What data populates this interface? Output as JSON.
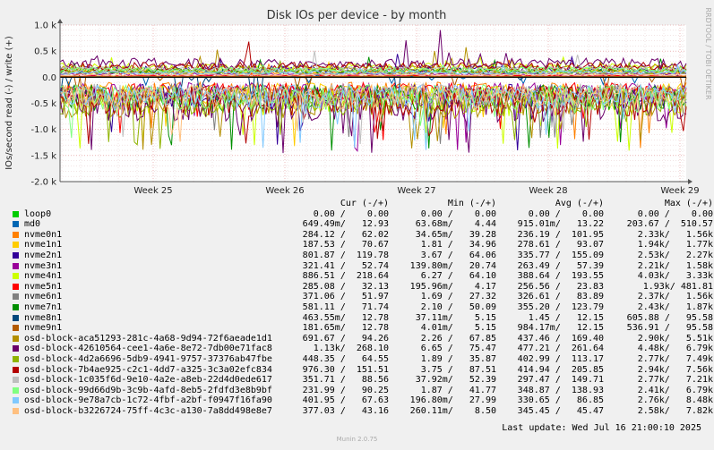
{
  "chart_data": {
    "type": "line",
    "title": "Disk IOs per device - by month",
    "ylabel": "IOs/second read (-) / write (+)",
    "ylim": [
      -2000,
      1000
    ],
    "yticks": [
      {
        "value": 1000,
        "label": "1.0 k"
      },
      {
        "value": 500,
        "label": "0.5 k"
      },
      {
        "value": 0,
        "label": "0.0"
      },
      {
        "value": -500,
        "label": "-0.5 k"
      },
      {
        "value": -1000,
        "label": "-1.0 k"
      },
      {
        "value": -1500,
        "label": "-1.5 k"
      },
      {
        "value": -2000,
        "label": "-2.0 k"
      }
    ],
    "xticks": [
      "Week 25",
      "Week 26",
      "Week 27",
      "Week 28",
      "Week 29"
    ],
    "grid": true,
    "side_label": "RRDTOOL / TOBI OETIKER",
    "legend_headers": [
      "Cur (-/+)",
      "Min (-/+)",
      "Avg (-/+)",
      "Max (-/+)"
    ],
    "series": [
      {
        "name": "loop0",
        "color": "#00cc00",
        "cur": "0.00 /    0.00",
        "min": "0.00 /    0.00",
        "avg": "0.00 /    0.00",
        "max": "0.00 /    0.00"
      },
      {
        "name": "md0",
        "color": "#0066b3",
        "cur": "649.49m/   12.93",
        "min": "63.68m/    4.44",
        "avg": "915.01m/   13.22",
        "max": "203.67 /  510.57"
      },
      {
        "name": "nvme0n1",
        "color": "#ff8000",
        "cur": "284.12 /   62.02",
        "min": "34.65m/   39.28",
        "avg": "236.19 /  101.95",
        "max": "2.33k/   1.56k"
      },
      {
        "name": "nvme1n1",
        "color": "#ffcc00",
        "cur": "187.53 /   70.67",
        "min": "1.81 /   34.96",
        "avg": "278.61 /   93.07",
        "max": "1.94k/   1.77k"
      },
      {
        "name": "nvme2n1",
        "color": "#330099",
        "cur": "801.87 /  119.78",
        "min": "3.67 /   64.06",
        "avg": "335.77 /  155.09",
        "max": "2.53k/   2.27k"
      },
      {
        "name": "nvme3n1",
        "color": "#990099",
        "cur": "321.41 /   52.74",
        "min": "139.80m/   20.74",
        "avg": "263.49 /   57.39",
        "max": "2.21k/   1.58k"
      },
      {
        "name": "nvme4n1",
        "color": "#ccff00",
        "cur": "886.51 /  218.64",
        "min": "6.27 /   64.10",
        "avg": "388.64 /  193.55",
        "max": "4.03k/   3.33k"
      },
      {
        "name": "nvme5n1",
        "color": "#ff0000",
        "cur": "285.08 /   32.13",
        "min": "195.96m/    4.17",
        "avg": "256.56 /   23.83",
        "max": "1.93k/ 481.81"
      },
      {
        "name": "nvme6n1",
        "color": "#808080",
        "cur": "371.06 /   51.97",
        "min": "1.69 /   27.32",
        "avg": "326.61 /   83.89",
        "max": "2.37k/   1.56k"
      },
      {
        "name": "nvme7n1",
        "color": "#008f00",
        "cur": "581.11 /   71.74",
        "min": "2.10 /   50.09",
        "avg": "355.20 /  123.79",
        "max": "2.43k/   1.87k"
      },
      {
        "name": "nvme8n1",
        "color": "#00487d",
        "cur": "463.55m/   12.78",
        "min": "37.11m/    5.15",
        "avg": "1.45 /   12.15",
        "max": "605.88 /   95.58"
      },
      {
        "name": "nvme9n1",
        "color": "#b35a00",
        "cur": "181.65m/   12.78",
        "min": "4.01m/    5.15",
        "avg": "984.17m/   12.15",
        "max": "536.91 /   95.58"
      },
      {
        "name": "osd-block-aca51293-281c-4a68-9d94-72f6aeade1d1",
        "color": "#b38f00",
        "cur": "691.67 /   94.26",
        "min": "2.26 /   67.85",
        "avg": "437.46 /  169.40",
        "max": "2.90k/   5.51k"
      },
      {
        "name": "osd-block-42610564-cee1-4a6e-8e72-7db00e71fac8",
        "color": "#6b006b",
        "cur": "1.13k/  268.10",
        "min": "6.65 /   75.47",
        "avg": "477.21 /  261.64",
        "max": "4.48k/   6.79k"
      },
      {
        "name": "osd-block-4d2a6696-5db9-4941-9757-37376ab47fbe",
        "color": "#8fb300",
        "cur": "448.35 /   64.55",
        "min": "1.89 /   35.87",
        "avg": "402.99 /  113.17",
        "max": "2.77k/   7.49k"
      },
      {
        "name": "osd-block-7b4ae925-c2c1-4dd7-a325-3c3a02efc834",
        "color": "#b30000",
        "cur": "976.30 /  151.51",
        "min": "3.75 /   87.51",
        "avg": "414.94 /  205.85",
        "max": "2.94k/   7.56k"
      },
      {
        "name": "osd-block-1c035f6d-9e10-4a2e-a8eb-22d4d0ede617",
        "color": "#bebebe",
        "cur": "351.71 /   88.56",
        "min": "37.92m/   52.39",
        "avg": "297.47 /  149.71",
        "max": "2.77k/   7.21k"
      },
      {
        "name": "osd-block-99d66d9b-3c9b-4afd-8eb5-2fdfd3e8b9bf",
        "color": "#80ff80",
        "cur": "231.99 /   90.25",
        "min": "1.87 /   41.77",
        "avg": "348.87 /  138.93",
        "max": "2.41k/   6.79k"
      },
      {
        "name": "osd-block-9e78a7cb-1c72-4fbf-a2bf-f0947f16fa90",
        "color": "#80c9ff",
        "cur": "401.95 /   67.63",
        "min": "196.80m/   27.99",
        "avg": "330.65 /   86.85",
        "max": "2.76k/   8.48k"
      },
      {
        "name": "osd-block-b3226724-75ff-4c3c-a130-7a8dd498e8e7",
        "color": "#ffc080",
        "cur": "377.03 /   43.16",
        "min": "260.11m/    8.50",
        "avg": "345.45 /   45.47",
        "max": "2.58k/   7.82k"
      }
    ],
    "last_update": "Last update: Wed Jul 16 21:00:10 2025",
    "generator": "Munin 2.0.75"
  }
}
